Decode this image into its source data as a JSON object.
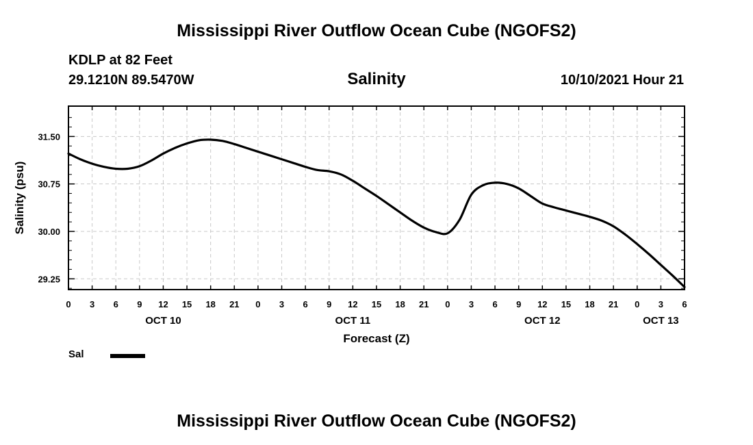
{
  "header": {
    "title_top": "Mississippi River Outflow Ocean Cube (NGOFS2)",
    "station": "KDLP at 82 Feet",
    "coords": "29.1210N  89.5470W",
    "variable": "Salinity",
    "datetime": "10/10/2021 Hour 21"
  },
  "footer": {
    "title_bottom": "Mississippi River Outflow Ocean Cube (NGOFS2)"
  },
  "legend": {
    "items": [
      {
        "label": "Sal",
        "color": "#000000"
      }
    ]
  },
  "chart_data": {
    "type": "line",
    "title": "Salinity",
    "xlabel": "Forecast (Z)",
    "ylabel": "Salinity (psu)",
    "grid": true,
    "xlim": [
      0,
      78
    ],
    "ylim": [
      29.08,
      31.98
    ],
    "x_ticks": [
      0,
      3,
      6,
      9,
      12,
      15,
      18,
      21,
      24,
      27,
      30,
      33,
      36,
      39,
      42,
      45,
      48,
      51,
      54,
      57,
      60,
      63,
      66,
      69,
      72,
      75,
      78
    ],
    "x_tick_labels": [
      "0",
      "3",
      "6",
      "9",
      "12",
      "15",
      "18",
      "21",
      "0",
      "3",
      "6",
      "9",
      "12",
      "15",
      "18",
      "21",
      "0",
      "3",
      "6",
      "9",
      "12",
      "15",
      "18",
      "21",
      "0",
      "3",
      "6"
    ],
    "date_labels": [
      {
        "x": 12,
        "label": "OCT 10"
      },
      {
        "x": 36,
        "label": "OCT 11"
      },
      {
        "x": 60,
        "label": "OCT 12"
      },
      {
        "x": 75,
        "label": "OCT 13"
      }
    ],
    "y_major_ticks": [
      29.25,
      30.0,
      30.75,
      31.5
    ],
    "y_tick_labels": [
      "29.25",
      "30.00",
      "30.75",
      "31.50"
    ],
    "y_minor_ticks": [
      29.1,
      29.4,
      29.55,
      29.7,
      29.85,
      30.15,
      30.3,
      30.45,
      30.6,
      30.9,
      31.05,
      31.2,
      31.35,
      31.65,
      31.8
    ],
    "series": [
      {
        "name": "Sal",
        "x": [
          0,
          1.5,
          3,
          4.5,
          6,
          7.5,
          9,
          10.5,
          12,
          13.5,
          15,
          16.5,
          18,
          19.5,
          21,
          22.5,
          24,
          25.5,
          27,
          28.5,
          30,
          31.5,
          33,
          34.5,
          36,
          37.5,
          39,
          40.5,
          42,
          43.5,
          45,
          46.5,
          48,
          49.5,
          51,
          52.5,
          54,
          55.5,
          57,
          58.5,
          60,
          61.5,
          63,
          64.5,
          66,
          67.5,
          69,
          70.5,
          72,
          73.5,
          75,
          76.5,
          78
        ],
        "y": [
          31.23,
          31.14,
          31.07,
          31.02,
          30.99,
          30.99,
          31.03,
          31.12,
          31.23,
          31.32,
          31.39,
          31.44,
          31.45,
          31.43,
          31.38,
          31.32,
          31.26,
          31.2,
          31.14,
          31.08,
          31.02,
          30.97,
          30.95,
          30.9,
          30.8,
          30.68,
          30.56,
          30.43,
          30.3,
          30.17,
          30.06,
          29.99,
          29.97,
          30.18,
          30.58,
          30.73,
          30.77,
          30.75,
          30.68,
          30.56,
          30.44,
          30.38,
          30.33,
          30.28,
          30.23,
          30.17,
          30.08,
          29.95,
          29.8,
          29.64,
          29.47,
          29.3,
          29.12
        ]
      }
    ]
  }
}
